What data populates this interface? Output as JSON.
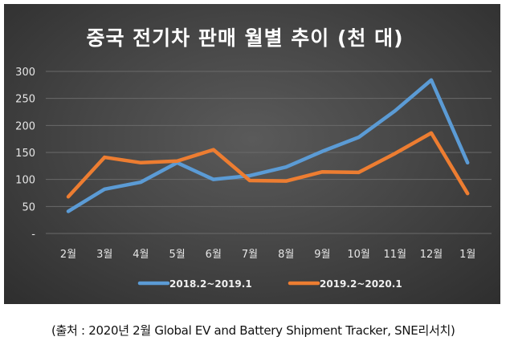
{
  "chart_data": {
    "type": "line",
    "title": "중국 전기차 판매 월별 추이 (천 대)",
    "categories": [
      "2월",
      "3월",
      "4월",
      "5월",
      "6월",
      "7월",
      "8월",
      "9월",
      "10월",
      "11월",
      "12월",
      "1월"
    ],
    "series": [
      {
        "name": "2018.2~2019.1",
        "color": "#5b9bd5",
        "values": [
          41,
          82,
          95,
          131,
          100,
          107,
          123,
          152,
          178,
          227,
          284,
          131
        ]
      },
      {
        "name": "2019.2~2020.1",
        "color": "#ed7d31",
        "values": [
          68,
          141,
          131,
          134,
          155,
          98,
          97,
          114,
          113,
          148,
          186,
          74
        ]
      }
    ],
    "yticks": [
      "-",
      "50",
      "100",
      "150",
      "200",
      "250",
      "300"
    ],
    "ylim": [
      0,
      300
    ],
    "grid": true,
    "legend": "bottom",
    "xlabel": "",
    "ylabel": ""
  },
  "caption": "(출처 : 2020년  2월  Global EV and Battery Shipment Tracker, SNE리서치)"
}
